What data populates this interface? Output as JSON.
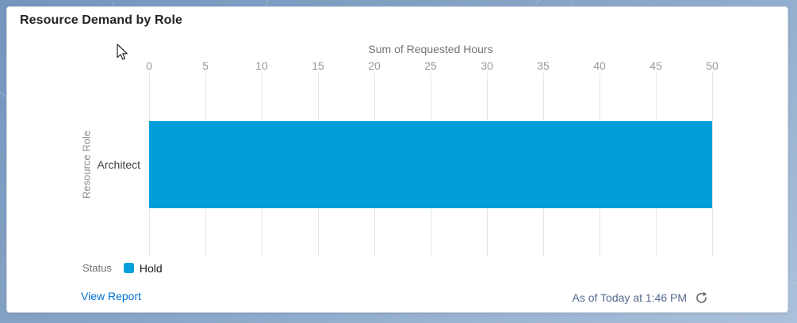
{
  "card": {
    "title": "Resource Demand by Role",
    "legend": {
      "label": "Status",
      "items": [
        {
          "label": "Hold",
          "color": "#009EDB"
        }
      ]
    },
    "footer": {
      "view_report_label": "View Report",
      "as_of_text": "As of Today at 1:46 PM",
      "refresh_icon": "refresh-icon"
    }
  },
  "chart_data": {
    "type": "bar",
    "orientation": "horizontal",
    "xlabel": "Sum of Requested Hours",
    "ylabel": "Resource Role",
    "categories": [
      "Architect"
    ],
    "series": [
      {
        "name": "Hold",
        "color": "#009EDB",
        "values": [
          50
        ]
      }
    ],
    "xlim": [
      0,
      50
    ],
    "xticks": [
      0,
      5,
      10,
      15,
      20,
      25,
      30,
      35,
      40,
      45,
      50
    ],
    "grid": true,
    "legend_position": "bottom-left"
  },
  "colors": {
    "bar": "#009EDB",
    "link": "#0070d2",
    "timestamp": "#54698d",
    "gridline": "#e4e6e9"
  }
}
